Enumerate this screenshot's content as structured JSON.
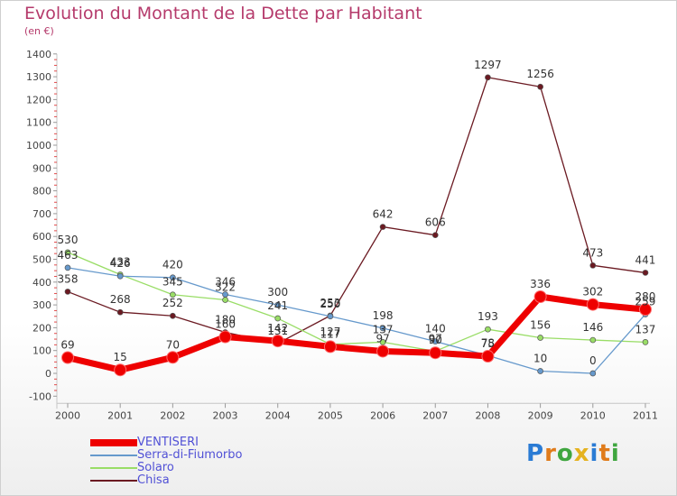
{
  "title": "Evolution du Montant de la Dette par Habitant",
  "subtitle": "(en €)",
  "logo": "Proxiti",
  "chart_data": {
    "type": "line",
    "x": [
      "2000",
      "2001",
      "2002",
      "2003",
      "2004",
      "2005",
      "2006",
      "2007",
      "2008",
      "2009",
      "2010",
      "2011"
    ],
    "ylim": [
      -100,
      1400
    ],
    "yticks": [
      -100,
      0,
      100,
      200,
      300,
      400,
      500,
      600,
      700,
      800,
      900,
      1000,
      1100,
      1200,
      1300,
      1400
    ],
    "grid": false,
    "legend_position": "bottom-left",
    "series": [
      {
        "name": "Chisa",
        "color": "#6b1a22",
        "values": [
          358,
          268,
          252,
          180,
          131,
          253,
          642,
          606,
          1297,
          1256,
          473,
          441
        ]
      },
      {
        "name": "Solaro",
        "color": "#99dd66",
        "values": [
          530,
          433,
          345,
          322,
          241,
          127,
          137,
          97,
          193,
          156,
          146,
          137
        ]
      },
      {
        "name": "Serra-di-Fiumorbo",
        "color": "#6699cc",
        "values": [
          463,
          426,
          420,
          346,
          300,
          250,
          198,
          140,
          78,
          10,
          0,
          259
        ]
      },
      {
        "name": "VENTISERI",
        "color": "#ee0000",
        "values": [
          69,
          15,
          70,
          160,
          142,
          117,
          97,
          90,
          75,
          336,
          302,
          280
        ]
      }
    ],
    "labels": [
      {
        "series": "Chisa",
        "values": [
          "358",
          "268",
          "252",
          "180",
          "131",
          "253",
          "642",
          "606",
          "1297",
          "1256",
          "473",
          "441"
        ]
      },
      {
        "series": "Solaro",
        "values": [
          "530",
          "433",
          "345",
          "322",
          "241",
          "127",
          "137",
          "97",
          "193",
          "156",
          "146",
          "137"
        ]
      },
      {
        "series": "Serra-di-Fiumorbo",
        "values": [
          "463",
          "426",
          "420",
          "346",
          "300",
          "250",
          "198",
          "140",
          "78",
          "10",
          "0",
          "259"
        ]
      },
      {
        "series": "VENTISERI",
        "values": [
          "69",
          "15",
          "70",
          "160",
          "142",
          "117",
          "97",
          "90",
          "75",
          "336",
          "302",
          "280"
        ]
      }
    ],
    "legend": [
      "VENTISERI",
      "Serra-di-Fiumorbo",
      "Solaro",
      "Chisa"
    ]
  },
  "legend_colors": {
    "VENTISERI": "#ee0000",
    "Serra-di-Fiumorbo": "#6699cc",
    "Solaro": "#99dd66",
    "Chisa": "#6b1a22"
  }
}
